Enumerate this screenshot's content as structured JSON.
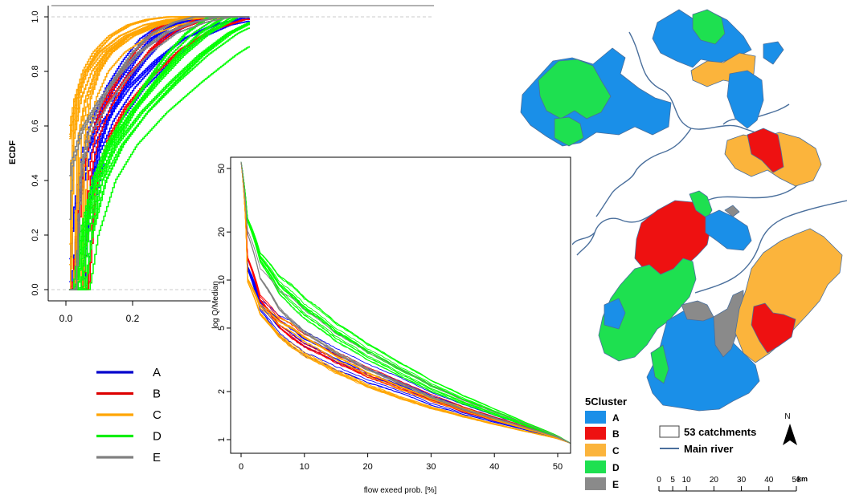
{
  "chart_data": [
    {
      "type": "line",
      "title": "",
      "xlabel": "",
      "ylabel": "ECDF",
      "xlim": [
        0.0,
        0.55
      ],
      "ylim": [
        0.0,
        1.0
      ],
      "x_ticks": [
        "0.0",
        "0.2"
      ],
      "y_ticks": [
        "0.0",
        "0.2",
        "0.4",
        "0.6",
        "0.8",
        "1.0"
      ],
      "grid": "dashed reference lines at 0 and 1",
      "legend_position": "bottom-left",
      "series": [
        {
          "name": "A",
          "color": "#0000ff",
          "curves": 12,
          "x": [
            0.03,
            0.05,
            0.08,
            0.12,
            0.18,
            0.25,
            0.32,
            0.4,
            0.5
          ],
          "y": [
            0.0,
            0.3,
            0.5,
            0.62,
            0.74,
            0.84,
            0.92,
            0.97,
            1.0
          ]
        },
        {
          "name": "B",
          "color": "#ff0000",
          "curves": 6,
          "x": [
            0.03,
            0.05,
            0.08,
            0.12,
            0.18,
            0.25,
            0.32,
            0.4,
            0.5
          ],
          "y": [
            0.0,
            0.4,
            0.56,
            0.67,
            0.78,
            0.88,
            0.95,
            0.99,
            1.0
          ]
        },
        {
          "name": "C",
          "color": "#ffa500",
          "curves": 15,
          "x": [
            0.02,
            0.03,
            0.05,
            0.08,
            0.12,
            0.18,
            0.25,
            0.32,
            0.4
          ],
          "y": [
            0.0,
            0.55,
            0.7,
            0.8,
            0.87,
            0.93,
            0.97,
            0.99,
            1.0
          ]
        },
        {
          "name": "D",
          "color": "#00ff00",
          "curves": 15,
          "x": [
            0.04,
            0.06,
            0.1,
            0.15,
            0.22,
            0.3,
            0.38,
            0.46,
            0.55
          ],
          "y": [
            0.0,
            0.2,
            0.4,
            0.53,
            0.65,
            0.76,
            0.86,
            0.94,
            1.0
          ]
        },
        {
          "name": "E",
          "color": "#808080",
          "curves": 5,
          "x": [
            0.02,
            0.04,
            0.07,
            0.12,
            0.18,
            0.25,
            0.33,
            0.42,
            0.5
          ],
          "y": [
            0.0,
            0.45,
            0.58,
            0.68,
            0.78,
            0.87,
            0.94,
            0.98,
            1.0
          ]
        }
      ]
    },
    {
      "type": "line",
      "title": "",
      "xlabel": "flow exeed prob. [%]",
      "ylabel": "log Q/Median",
      "xlim": [
        0,
        52
      ],
      "ylim": [
        0.9,
        60
      ],
      "y_scale": "log",
      "x_ticks": [
        "0",
        "10",
        "20",
        "30",
        "40",
        "50"
      ],
      "y_ticks": [
        "1",
        "2",
        "5",
        "10",
        "20",
        "50"
      ],
      "series": [
        {
          "name": "A",
          "color": "#0000ff",
          "curves": 12,
          "x": [
            0,
            1,
            3,
            6,
            10,
            15,
            20,
            25,
            30,
            35,
            40,
            45,
            50,
            52
          ],
          "y": [
            55,
            12,
            7.0,
            5.2,
            4.0,
            3.2,
            2.6,
            2.2,
            1.8,
            1.55,
            1.35,
            1.18,
            1.02,
            0.95
          ]
        },
        {
          "name": "B",
          "color": "#ff0000",
          "curves": 6,
          "x": [
            0,
            1,
            3,
            6,
            10,
            15,
            20,
            25,
            30,
            35,
            40,
            45,
            50,
            52
          ],
          "y": [
            55,
            14,
            8.0,
            5.8,
            4.5,
            3.5,
            2.8,
            2.3,
            1.9,
            1.6,
            1.38,
            1.2,
            1.03,
            0.95
          ]
        },
        {
          "name": "C",
          "color": "#ffa500",
          "curves": 15,
          "x": [
            0,
            1,
            3,
            6,
            10,
            15,
            20,
            25,
            30,
            35,
            40,
            45,
            50,
            52
          ],
          "y": [
            55,
            10,
            6.5,
            5.0,
            3.9,
            3.0,
            2.4,
            2.0,
            1.7,
            1.48,
            1.3,
            1.15,
            1.02,
            0.95
          ]
        },
        {
          "name": "D",
          "color": "#00ff00",
          "curves": 15,
          "x": [
            0,
            1,
            3,
            6,
            10,
            15,
            20,
            25,
            30,
            35,
            40,
            45,
            50,
            52
          ],
          "y": [
            55,
            24,
            14,
            9.5,
            6.8,
            4.8,
            3.6,
            2.8,
            2.2,
            1.8,
            1.5,
            1.25,
            1.05,
            0.95
          ]
        },
        {
          "name": "E",
          "color": "#808080",
          "curves": 5,
          "x": [
            0,
            1,
            3,
            6,
            10,
            15,
            20,
            25,
            30,
            35,
            40,
            45,
            50,
            52
          ],
          "y": [
            55,
            20,
            11,
            7.5,
            5.5,
            4.0,
            3.1,
            2.5,
            2.0,
            1.65,
            1.42,
            1.22,
            1.04,
            0.95
          ]
        }
      ]
    }
  ],
  "legend": {
    "items": [
      {
        "label": "A",
        "color": "#0000cc"
      },
      {
        "label": "B",
        "color": "#dd0000"
      },
      {
        "label": "C",
        "color": "#ffa500"
      },
      {
        "label": "D",
        "color": "#11ee11"
      },
      {
        "label": "E",
        "color": "#808080"
      }
    ]
  },
  "map": {
    "legend_title": "5Cluster",
    "classes": [
      {
        "label": "A",
        "color": "#1a8fe8"
      },
      {
        "label": "B",
        "color": "#ee1111"
      },
      {
        "label": "C",
        "color": "#fbb43c"
      },
      {
        "label": "D",
        "color": "#1ee050"
      },
      {
        "label": "E",
        "color": "#8a8a8a"
      }
    ],
    "catchments_label": "53 catchments",
    "river_label": "Main river",
    "river_color": "#4a6f9c",
    "north_label": "N",
    "scale_ticks": [
      "0",
      "5",
      "10",
      "20",
      "30",
      "40",
      "50"
    ],
    "scale_unit": "km"
  }
}
